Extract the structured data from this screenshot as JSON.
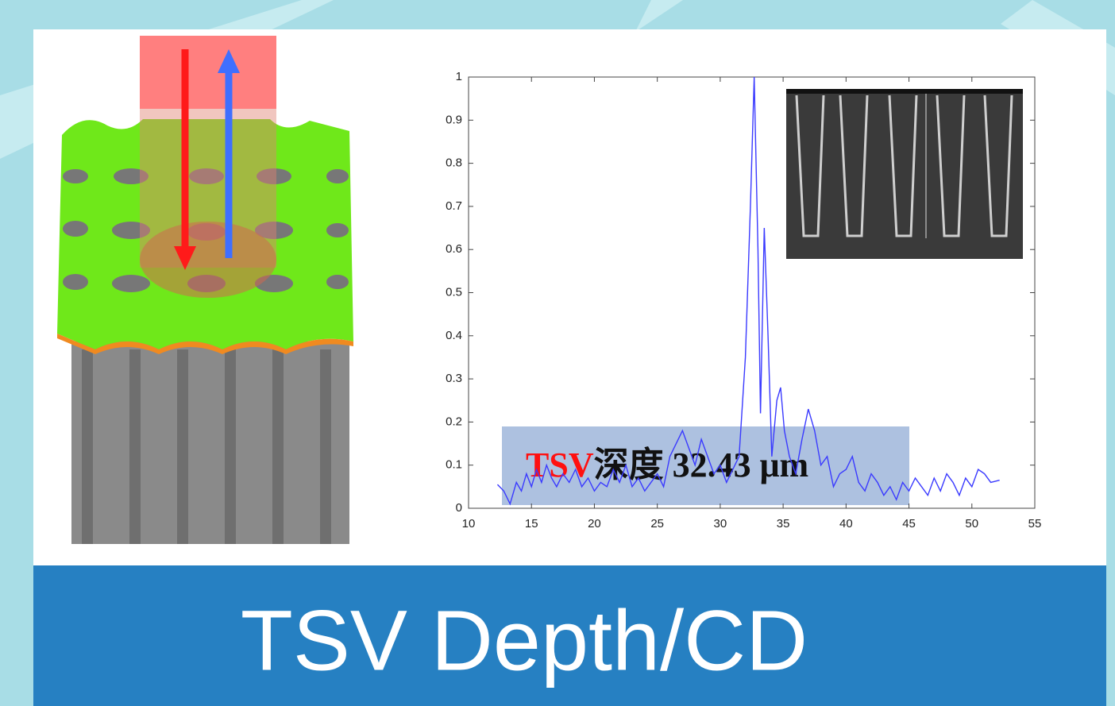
{
  "chart_data": {
    "type": "line",
    "annotation": {
      "highlight": "TSV",
      "text": "深度 32.43 μm"
    },
    "xlim": [
      10,
      55
    ],
    "xticks": [
      10,
      15,
      20,
      25,
      30,
      35,
      40,
      45,
      50,
      55
    ],
    "ylim": [
      0,
      1
    ],
    "yticks": [
      0,
      0.1,
      0.2,
      0.3,
      0.4,
      0.5,
      0.6,
      0.7,
      0.8,
      0.9,
      1
    ],
    "x": [
      12.3,
      12.8,
      13.3,
      13.8,
      14.2,
      14.6,
      15.0,
      15.4,
      15.8,
      16.2,
      16.6,
      17.0,
      17.5,
      18.0,
      18.5,
      19.0,
      19.5,
      20.0,
      20.5,
      21.0,
      21.5,
      22.0,
      22.5,
      23.0,
      23.5,
      24.0,
      24.5,
      25.0,
      25.5,
      26.0,
      26.5,
      27.0,
      27.5,
      28.0,
      28.5,
      29.0,
      29.5,
      30.0,
      30.5,
      31.0,
      31.5,
      32.0,
      32.4,
      32.7,
      33.0,
      33.2,
      33.5,
      33.8,
      34.1,
      34.5,
      34.8,
      35.1,
      35.5,
      36.0,
      36.5,
      37.0,
      37.5,
      38.0,
      38.5,
      39.0,
      39.5,
      40.0,
      40.5,
      41.0,
      41.5,
      42.0,
      42.5,
      43.0,
      43.5,
      44.0,
      44.5,
      45.0,
      45.5,
      46.0,
      46.5,
      47.0,
      47.5,
      48.0,
      48.5,
      49.0,
      49.5,
      50.0,
      50.5,
      51.0,
      51.5,
      52.2
    ],
    "series": [
      {
        "color": "#3a3aff",
        "values": [
          0.055,
          0.04,
          0.01,
          0.06,
          0.04,
          0.08,
          0.05,
          0.09,
          0.06,
          0.1,
          0.07,
          0.05,
          0.08,
          0.06,
          0.09,
          0.05,
          0.07,
          0.04,
          0.06,
          0.05,
          0.09,
          0.06,
          0.1,
          0.05,
          0.07,
          0.04,
          0.06,
          0.08,
          0.05,
          0.12,
          0.15,
          0.18,
          0.14,
          0.1,
          0.16,
          0.12,
          0.08,
          0.1,
          0.06,
          0.09,
          0.12,
          0.35,
          0.7,
          1.0,
          0.6,
          0.22,
          0.65,
          0.4,
          0.12,
          0.25,
          0.28,
          0.18,
          0.12,
          0.08,
          0.16,
          0.23,
          0.18,
          0.1,
          0.12,
          0.05,
          0.08,
          0.09,
          0.12,
          0.06,
          0.04,
          0.08,
          0.06,
          0.03,
          0.05,
          0.02,
          0.06,
          0.04,
          0.07,
          0.05,
          0.03,
          0.07,
          0.04,
          0.08,
          0.06,
          0.03,
          0.07,
          0.05,
          0.09,
          0.08,
          0.06,
          0.065
        ]
      }
    ]
  },
  "caption": "TSV Depth/CD"
}
